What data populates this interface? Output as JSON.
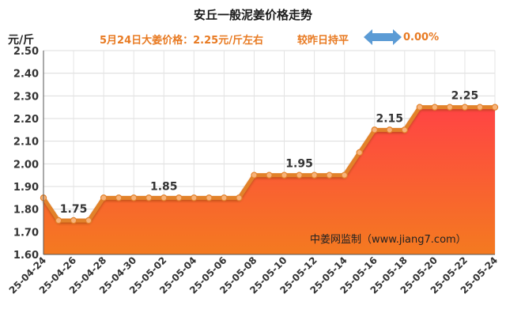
{
  "title": "安丘一般泥姜价格走势",
  "unit_label": "元/斤",
  "subtitle": {
    "price_text": "5月24日大姜价格：2.25元/斤左右",
    "compare_text": "较昨日持平",
    "change_text": "0.00%"
  },
  "icons": {
    "compare": "double-arrow-icon"
  },
  "watermark": "中姜网监制（www.jiang7.com）",
  "colors": {
    "area_top": "#ff4444",
    "area_bottom": "#f47a20",
    "line": "#e2822c",
    "marker_fill": "#f7b37a",
    "arrow": "#5b9bd5",
    "subtitle_text": "#e87a22"
  },
  "chart_data": {
    "type": "area",
    "title": "安丘一般泥姜价格走势",
    "ylabel": "元/斤",
    "ylim": [
      1.6,
      2.5
    ],
    "yticks": [
      "1.60",
      "1.70",
      "1.80",
      "1.90",
      "2.00",
      "2.10",
      "2.20",
      "2.30",
      "2.40",
      "2.50"
    ],
    "xticks": [
      "25-04-24",
      "25-04-26",
      "25-04-28",
      "25-04-30",
      "25-05-02",
      "25-05-04",
      "25-05-06",
      "25-05-08",
      "25-05-10",
      "25-05-12",
      "25-05-14",
      "25-05-16",
      "25-05-18",
      "25-05-20",
      "25-05-22",
      "25-05-24"
    ],
    "x": [
      "25-04-24",
      "25-04-25",
      "25-04-26",
      "25-04-27",
      "25-04-28",
      "25-04-29",
      "25-04-30",
      "25-05-01",
      "25-05-02",
      "25-05-03",
      "25-05-04",
      "25-05-05",
      "25-05-06",
      "25-05-07",
      "25-05-08",
      "25-05-09",
      "25-05-10",
      "25-05-11",
      "25-05-12",
      "25-05-13",
      "25-05-14",
      "25-05-15",
      "25-05-16",
      "25-05-17",
      "25-05-18",
      "25-05-19",
      "25-05-20",
      "25-05-21",
      "25-05-22",
      "25-05-23",
      "25-05-24"
    ],
    "values": [
      1.85,
      1.75,
      1.75,
      1.75,
      1.85,
      1.85,
      1.85,
      1.85,
      1.85,
      1.85,
      1.85,
      1.85,
      1.85,
      1.85,
      1.95,
      1.95,
      1.95,
      1.95,
      1.95,
      1.95,
      1.95,
      2.05,
      2.15,
      2.15,
      2.15,
      2.25,
      2.25,
      2.25,
      2.25,
      2.25,
      2.25
    ],
    "data_labels": [
      {
        "x": "25-04-26",
        "text": "1.75"
      },
      {
        "x": "25-05-02",
        "text": "1.85"
      },
      {
        "x": "25-05-11",
        "text": "1.95"
      },
      {
        "x": "25-05-17",
        "text": "2.15"
      },
      {
        "x": "25-05-22",
        "text": "2.25"
      }
    ],
    "grid": true
  }
}
